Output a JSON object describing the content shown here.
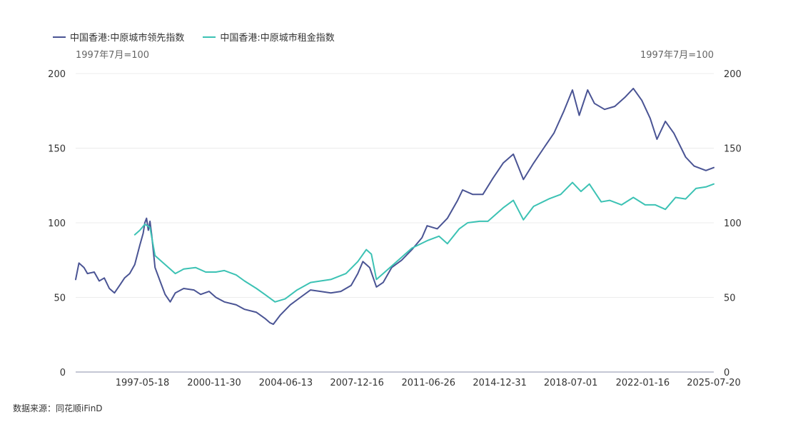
{
  "legend": [
    {
      "label": "中国香港:中原城市领先指数",
      "color": "#4a5494"
    },
    {
      "label": "中国香港:中原城市租金指数",
      "color": "#3cc2b4"
    }
  ],
  "unit_left": "1997年7月=100",
  "unit_right": "1997年7月=100",
  "source": "数据来源：同花顺iFinD",
  "chart_data": {
    "type": "line",
    "x_labels": [
      "1997-05-18",
      "2000-11-30",
      "2004-06-13",
      "2007-12-16",
      "2011-06-26",
      "2014-12-31",
      "2018-07-01",
      "2022-01-16",
      "2025-07-20"
    ],
    "x_range": [
      "1994-02-01",
      "2025-07-20"
    ],
    "y_left": {
      "ticks": [
        0,
        50,
        100,
        150,
        200
      ],
      "range": [
        0,
        200
      ]
    },
    "y_right": {
      "ticks": [
        0,
        50,
        100,
        150,
        200
      ],
      "range": [
        0,
        200
      ]
    },
    "grid": true,
    "legend_position": "top-left",
    "series": [
      {
        "name": "中国香港:中原城市领先指数",
        "color": "#4a5494",
        "points": [
          [
            "1994-02-01",
            62
          ],
          [
            "1994-04-01",
            73
          ],
          [
            "1994-07-01",
            70
          ],
          [
            "1994-09-01",
            66
          ],
          [
            "1995-01-01",
            67
          ],
          [
            "1995-04-01",
            61
          ],
          [
            "1995-07-01",
            63
          ],
          [
            "1995-10-01",
            56
          ],
          [
            "1996-01-01",
            53
          ],
          [
            "1996-04-01",
            58
          ],
          [
            "1996-07-01",
            63
          ],
          [
            "1996-10-01",
            66
          ],
          [
            "1997-01-01",
            72
          ],
          [
            "1997-04-01",
            85
          ],
          [
            "1997-06-01",
            93
          ],
          [
            "1997-07-01",
            100
          ],
          [
            "1997-08-01",
            103
          ],
          [
            "1997-09-01",
            95
          ],
          [
            "1997-10-01",
            101
          ],
          [
            "1997-11-01",
            92
          ],
          [
            "1998-01-01",
            70
          ],
          [
            "1998-04-01",
            61
          ],
          [
            "1998-07-01",
            52
          ],
          [
            "1998-10-01",
            47
          ],
          [
            "1999-01-01",
            53
          ],
          [
            "1999-06-01",
            56
          ],
          [
            "1999-12-01",
            55
          ],
          [
            "2000-04-01",
            52
          ],
          [
            "2000-09-01",
            54
          ],
          [
            "2001-01-01",
            50
          ],
          [
            "2001-06-01",
            47
          ],
          [
            "2002-01-01",
            45
          ],
          [
            "2002-06-01",
            42
          ],
          [
            "2003-01-01",
            40
          ],
          [
            "2003-06-01",
            36
          ],
          [
            "2003-09-01",
            33
          ],
          [
            "2003-11-01",
            32
          ],
          [
            "2004-03-01",
            38
          ],
          [
            "2004-09-01",
            45
          ],
          [
            "2005-03-01",
            50
          ],
          [
            "2005-09-01",
            55
          ],
          [
            "2006-03-01",
            54
          ],
          [
            "2006-09-01",
            53
          ],
          [
            "2007-03-01",
            54
          ],
          [
            "2007-09-01",
            58
          ],
          [
            "2008-01-01",
            66
          ],
          [
            "2008-04-01",
            74
          ],
          [
            "2008-08-01",
            70
          ],
          [
            "2008-12-01",
            57
          ],
          [
            "2009-04-01",
            60
          ],
          [
            "2009-09-01",
            70
          ],
          [
            "2010-03-01",
            75
          ],
          [
            "2010-09-01",
            82
          ],
          [
            "2011-03-01",
            90
          ],
          [
            "2011-06-01",
            98
          ],
          [
            "2011-12-01",
            96
          ],
          [
            "2012-06-01",
            103
          ],
          [
            "2012-12-01",
            115
          ],
          [
            "2013-03-01",
            122
          ],
          [
            "2013-09-01",
            119
          ],
          [
            "2014-03-01",
            119
          ],
          [
            "2014-09-01",
            130
          ],
          [
            "2015-03-01",
            140
          ],
          [
            "2015-09-01",
            146
          ],
          [
            "2016-03-01",
            129
          ],
          [
            "2016-09-01",
            140
          ],
          [
            "2017-03-01",
            150
          ],
          [
            "2017-09-01",
            160
          ],
          [
            "2018-03-01",
            175
          ],
          [
            "2018-08-01",
            189
          ],
          [
            "2018-12-01",
            172
          ],
          [
            "2019-05-01",
            189
          ],
          [
            "2019-09-01",
            180
          ],
          [
            "2020-03-01",
            176
          ],
          [
            "2020-09-01",
            178
          ],
          [
            "2021-03-01",
            184
          ],
          [
            "2021-08-01",
            190
          ],
          [
            "2022-01-01",
            182
          ],
          [
            "2022-06-01",
            170
          ],
          [
            "2022-10-01",
            156
          ],
          [
            "2023-03-01",
            168
          ],
          [
            "2023-08-01",
            160
          ],
          [
            "2024-03-01",
            144
          ],
          [
            "2024-08-01",
            138
          ],
          [
            "2025-03-01",
            135
          ],
          [
            "2025-07-20",
            137
          ]
        ]
      },
      {
        "name": "中国香港:中原城市租金指数",
        "color": "#3cc2b4",
        "points": [
          [
            "1997-01-01",
            92
          ],
          [
            "1997-04-01",
            95
          ],
          [
            "1997-07-01",
            99
          ],
          [
            "1997-10-01",
            97
          ],
          [
            "1998-01-01",
            78
          ],
          [
            "1998-07-01",
            72
          ],
          [
            "1999-01-01",
            66
          ],
          [
            "1999-06-01",
            69
          ],
          [
            "2000-01-01",
            70
          ],
          [
            "2000-07-01",
            67
          ],
          [
            "2001-01-01",
            67
          ],
          [
            "2001-06-01",
            68
          ],
          [
            "2002-01-01",
            65
          ],
          [
            "2002-06-01",
            61
          ],
          [
            "2003-01-01",
            56
          ],
          [
            "2003-06-01",
            52
          ],
          [
            "2003-12-01",
            47
          ],
          [
            "2004-06-01",
            49
          ],
          [
            "2005-01-01",
            55
          ],
          [
            "2005-09-01",
            60
          ],
          [
            "2006-03-01",
            61
          ],
          [
            "2006-09-01",
            62
          ],
          [
            "2007-06-01",
            66
          ],
          [
            "2008-01-01",
            74
          ],
          [
            "2008-06-01",
            82
          ],
          [
            "2008-09-01",
            79
          ],
          [
            "2008-12-01",
            62
          ],
          [
            "2009-06-01",
            68
          ],
          [
            "2010-01-01",
            75
          ],
          [
            "2010-09-01",
            83
          ],
          [
            "2011-06-01",
            88
          ],
          [
            "2012-01-01",
            91
          ],
          [
            "2012-06-01",
            86
          ],
          [
            "2013-01-01",
            96
          ],
          [
            "2013-06-01",
            100
          ],
          [
            "2014-01-01",
            101
          ],
          [
            "2014-06-01",
            101
          ],
          [
            "2015-03-01",
            110
          ],
          [
            "2015-09-01",
            115
          ],
          [
            "2016-03-01",
            102
          ],
          [
            "2016-09-01",
            111
          ],
          [
            "2017-06-01",
            116
          ],
          [
            "2018-01-01",
            119
          ],
          [
            "2018-08-01",
            127
          ],
          [
            "2019-01-01",
            121
          ],
          [
            "2019-06-01",
            126
          ],
          [
            "2020-01-01",
            114
          ],
          [
            "2020-06-01",
            115
          ],
          [
            "2021-01-01",
            112
          ],
          [
            "2021-08-01",
            117
          ],
          [
            "2022-03-01",
            112
          ],
          [
            "2022-09-01",
            112
          ],
          [
            "2023-03-01",
            109
          ],
          [
            "2023-09-01",
            117
          ],
          [
            "2024-03-01",
            116
          ],
          [
            "2024-09-01",
            123
          ],
          [
            "2025-03-01",
            124
          ],
          [
            "2025-07-20",
            126
          ]
        ]
      }
    ]
  }
}
